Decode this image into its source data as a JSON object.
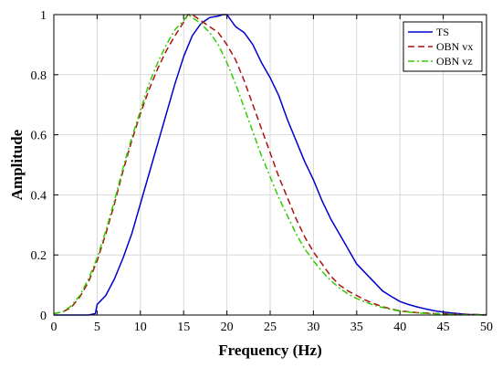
{
  "chart_data": {
    "type": "line",
    "xlabel": "Frequency (Hz)",
    "ylabel": "Amplitude",
    "xlim": [
      0,
      50
    ],
    "ylim": [
      0,
      1
    ],
    "xticks": [
      0,
      5,
      10,
      15,
      20,
      25,
      30,
      35,
      40,
      45,
      50
    ],
    "yticks": [
      0,
      0.2,
      0.4,
      0.6,
      0.8,
      1
    ],
    "xtick_labels": [
      "0",
      "5",
      "10",
      "15",
      "20",
      "25",
      "30",
      "35",
      "40",
      "45",
      "50"
    ],
    "ytick_labels": [
      "0",
      "0.2",
      "0.4",
      "0.6",
      "0.8",
      "1"
    ],
    "grid": true,
    "legend_position": "top-right",
    "series": [
      {
        "name": "TS",
        "color": "#0000cc",
        "style": "solid",
        "points": [
          [
            0,
            0.0
          ],
          [
            2,
            0.0
          ],
          [
            4,
            0.0
          ],
          [
            4.8,
            0.005
          ],
          [
            5,
            0.035
          ],
          [
            6,
            0.065
          ],
          [
            7,
            0.12
          ],
          [
            8,
            0.19
          ],
          [
            9,
            0.27
          ],
          [
            10,
            0.37
          ],
          [
            11,
            0.47
          ],
          [
            12,
            0.57
          ],
          [
            13,
            0.67
          ],
          [
            14,
            0.77
          ],
          [
            15,
            0.86
          ],
          [
            16,
            0.93
          ],
          [
            17,
            0.97
          ],
          [
            18,
            0.99
          ],
          [
            19,
            0.995
          ],
          [
            19.5,
            1.0
          ],
          [
            20,
            1.0
          ],
          [
            21,
            0.96
          ],
          [
            22,
            0.94
          ],
          [
            23,
            0.9
          ],
          [
            24,
            0.84
          ],
          [
            25,
            0.79
          ],
          [
            26,
            0.73
          ],
          [
            27,
            0.65
          ],
          [
            28,
            0.58
          ],
          [
            29,
            0.51
          ],
          [
            30,
            0.45
          ],
          [
            31,
            0.38
          ],
          [
            32,
            0.32
          ],
          [
            33,
            0.27
          ],
          [
            34,
            0.22
          ],
          [
            35,
            0.17
          ],
          [
            36,
            0.14
          ],
          [
            37,
            0.11
          ],
          [
            38,
            0.08
          ],
          [
            39,
            0.062
          ],
          [
            40,
            0.045
          ],
          [
            41,
            0.035
          ],
          [
            42,
            0.027
          ],
          [
            43,
            0.02
          ],
          [
            44,
            0.014
          ],
          [
            45,
            0.01
          ],
          [
            46,
            0.007
          ],
          [
            47,
            0.004
          ],
          [
            48,
            0.002
          ],
          [
            49,
            0.001
          ],
          [
            50,
            0.0
          ]
        ]
      },
      {
        "name": "OBN vx",
        "color": "#aa1111",
        "style": "dashed",
        "points": [
          [
            0,
            0.005
          ],
          [
            1,
            0.01
          ],
          [
            2,
            0.025
          ],
          [
            3,
            0.06
          ],
          [
            4,
            0.11
          ],
          [
            5,
            0.18
          ],
          [
            6,
            0.27
          ],
          [
            7,
            0.37
          ],
          [
            8,
            0.48
          ],
          [
            9,
            0.58
          ],
          [
            10,
            0.67
          ],
          [
            11,
            0.75
          ],
          [
            12,
            0.82
          ],
          [
            13,
            0.88
          ],
          [
            14,
            0.93
          ],
          [
            15,
            0.975
          ],
          [
            15.5,
            1.0
          ],
          [
            16,
            1.0
          ],
          [
            17,
            0.98
          ],
          [
            18,
            0.96
          ],
          [
            19,
            0.94
          ],
          [
            20,
            0.9
          ],
          [
            21,
            0.85
          ],
          [
            22,
            0.78
          ],
          [
            23,
            0.7
          ],
          [
            24,
            0.62
          ],
          [
            25,
            0.54
          ],
          [
            26,
            0.46
          ],
          [
            27,
            0.39
          ],
          [
            28,
            0.32
          ],
          [
            29,
            0.26
          ],
          [
            30,
            0.21
          ],
          [
            31,
            0.17
          ],
          [
            32,
            0.13
          ],
          [
            33,
            0.1
          ],
          [
            34,
            0.08
          ],
          [
            35,
            0.065
          ],
          [
            36,
            0.05
          ],
          [
            37,
            0.038
          ],
          [
            38,
            0.028
          ],
          [
            39,
            0.02
          ],
          [
            40,
            0.014
          ],
          [
            42,
            0.008
          ],
          [
            44,
            0.005
          ],
          [
            46,
            0.003
          ],
          [
            48,
            0.002
          ],
          [
            50,
            0.001
          ]
        ]
      },
      {
        "name": "OBN vz",
        "color": "#33cc00",
        "style": "dashdot",
        "points": [
          [
            0,
            0.005
          ],
          [
            1,
            0.01
          ],
          [
            2,
            0.03
          ],
          [
            3,
            0.065
          ],
          [
            4,
            0.12
          ],
          [
            5,
            0.19
          ],
          [
            6,
            0.28
          ],
          [
            7,
            0.38
          ],
          [
            8,
            0.49
          ],
          [
            9,
            0.59
          ],
          [
            10,
            0.68
          ],
          [
            11,
            0.77
          ],
          [
            12,
            0.84
          ],
          [
            13,
            0.9
          ],
          [
            14,
            0.95
          ],
          [
            15,
            0.98
          ],
          [
            15.5,
            1.0
          ],
          [
            16,
            0.99
          ],
          [
            17,
            0.97
          ],
          [
            18,
            0.94
          ],
          [
            19,
            0.9
          ],
          [
            20,
            0.84
          ],
          [
            21,
            0.77
          ],
          [
            22,
            0.69
          ],
          [
            23,
            0.61
          ],
          [
            24,
            0.53
          ],
          [
            25,
            0.46
          ],
          [
            26,
            0.39
          ],
          [
            27,
            0.33
          ],
          [
            28,
            0.27
          ],
          [
            29,
            0.22
          ],
          [
            30,
            0.18
          ],
          [
            31,
            0.145
          ],
          [
            32,
            0.115
          ],
          [
            33,
            0.09
          ],
          [
            34,
            0.07
          ],
          [
            35,
            0.055
          ],
          [
            36,
            0.043
          ],
          [
            37,
            0.033
          ],
          [
            38,
            0.025
          ],
          [
            39,
            0.018
          ],
          [
            40,
            0.013
          ],
          [
            42,
            0.007
          ],
          [
            44,
            0.004
          ],
          [
            46,
            0.002
          ],
          [
            48,
            0.001
          ],
          [
            50,
            0.001
          ]
        ]
      }
    ]
  }
}
